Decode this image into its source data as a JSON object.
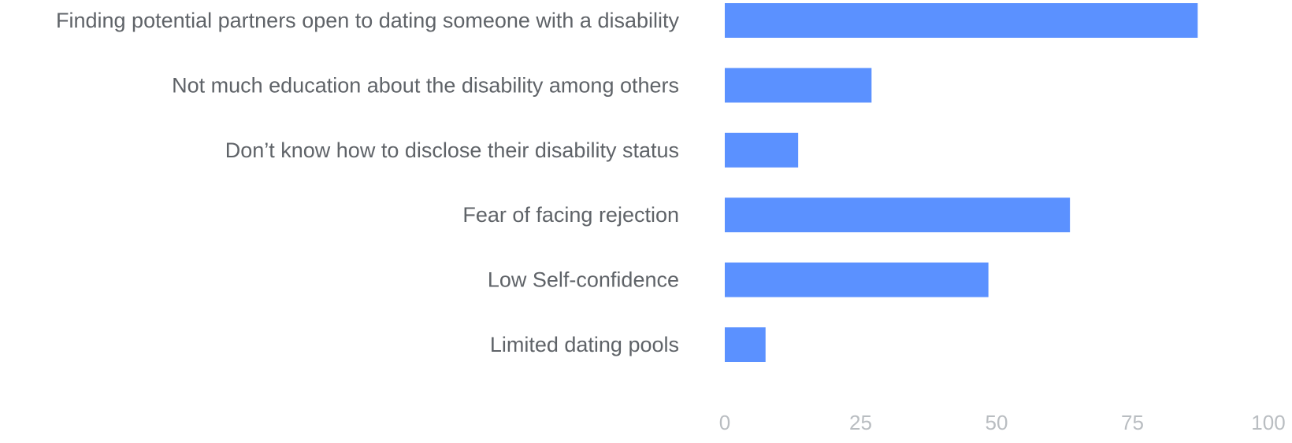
{
  "chart_data": {
    "type": "bar",
    "orientation": "horizontal",
    "categories": [
      "Finding potential partners open to dating someone with a disability",
      "Not much education about the disability among others",
      "Don’t know how to disclose their disability status",
      "Fear of facing rejection",
      "Low Self-confidence",
      "Limited dating pools"
    ],
    "values": [
      87,
      27,
      13.5,
      63.5,
      48.5,
      7.5
    ],
    "xlim": [
      0,
      100
    ],
    "xticks": [
      0,
      25,
      50,
      75,
      100
    ],
    "title": "",
    "xlabel": "",
    "ylabel": "",
    "grid": false,
    "legend": "none",
    "bar_color": "#5b91ff"
  }
}
